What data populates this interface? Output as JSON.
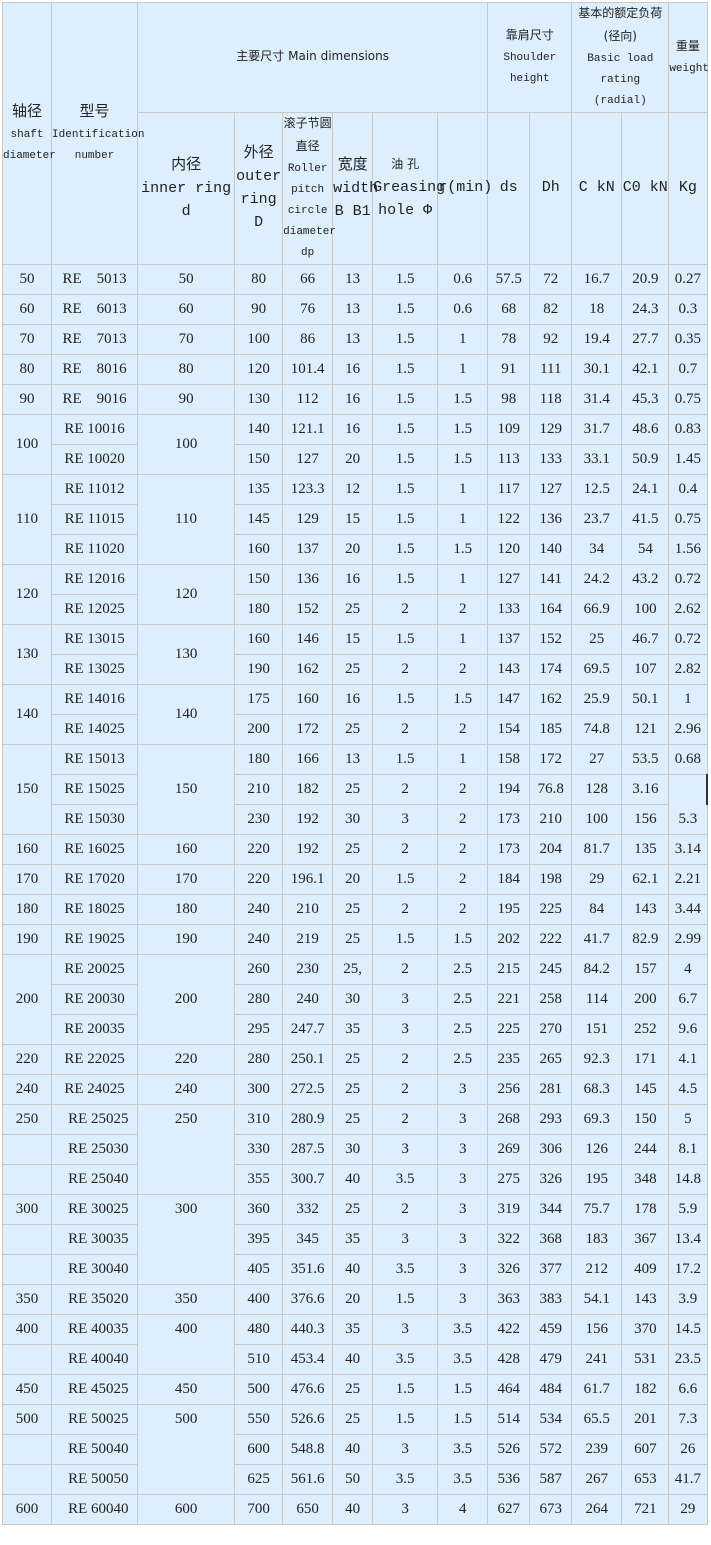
{
  "header": {
    "shaft": {
      "zh": "轴径",
      "en": "shaft diameter"
    },
    "id": {
      "zh": "型号",
      "en": "Identification number"
    },
    "main": "主要尺寸 Main dimensions",
    "shoulder": {
      "zh": "靠肩尺寸",
      "en": "Shoulder height"
    },
    "load": {
      "zh": "基本的额定负荷(径向)",
      "en": "Basic load rating (radial)"
    },
    "weight": {
      "zh": "重量",
      "en": "weight"
    },
    "inner": {
      "zh": "内径",
      "en": "inner ring d"
    },
    "outer": {
      "zh": "外径",
      "en": "outer ring D"
    },
    "pitch": {
      "zh": "滚子节圆直径",
      "en": "Roller pitch circle diameter dp"
    },
    "width": {
      "zh": "宽度",
      "en": "width B B1"
    },
    "grease": {
      "zh": "油 孔",
      "en": "Greasing hole Φ"
    },
    "r": "r(min)",
    "ds": "ds",
    "dh": "Dh",
    "c": "C kN",
    "c0": "C0 kN",
    "kg": "Kg"
  },
  "groups": [
    {
      "shaft": "50",
      "inner": "50",
      "rows": [
        {
          "id": "RE    5013",
          "v": [
            "80",
            "66",
            "13",
            "1.5",
            "0.6",
            "57.5",
            "72",
            "16.7",
            "20.9",
            "0.27"
          ]
        }
      ]
    },
    {
      "shaft": "60",
      "inner": "60",
      "rows": [
        {
          "id": "RE    6013",
          "v": [
            "90",
            "76",
            "13",
            "1.5",
            "0.6",
            "68",
            "82",
            "18",
            "24.3",
            "0.3"
          ]
        }
      ]
    },
    {
      "shaft": "70",
      "inner": "70",
      "rows": [
        {
          "id": "RE    7013",
          "v": [
            "100",
            "86",
            "13",
            "1.5",
            "1",
            "78",
            "92",
            "19.4",
            "27.7",
            "0.35"
          ]
        }
      ]
    },
    {
      "shaft": "80",
      "inner": "80",
      "rows": [
        {
          "id": "RE    8016",
          "v": [
            "120",
            "101.4",
            "16",
            "1.5",
            "1",
            "91",
            "111",
            "30.1",
            "42.1",
            "0.7"
          ]
        }
      ]
    },
    {
      "shaft": "90",
      "inner": "90",
      "rows": [
        {
          "id": "RE    9016",
          "v": [
            "130",
            "112",
            "16",
            "1.5",
            "1.5",
            "98",
            "118",
            "31.4",
            "45.3",
            "0.75"
          ]
        }
      ]
    },
    {
      "shaft": "100",
      "inner": "100",
      "rows": [
        {
          "id": "RE 10016",
          "v": [
            "140",
            "121.1",
            "16",
            "1.5",
            "1.5",
            "109",
            "129",
            "31.7",
            "48.6",
            "0.83"
          ]
        },
        {
          "id": "RE 10020",
          "v": [
            "150",
            "127",
            "20",
            "1.5",
            "1.5",
            "113",
            "133",
            "33.1",
            "50.9",
            "1.45"
          ]
        }
      ]
    },
    {
      "shaft": "110",
      "inner": "110",
      "rows": [
        {
          "id": "RE 11012",
          "v": [
            "135",
            "123.3",
            "12",
            "1.5",
            "1",
            "117",
            "127",
            "12.5",
            "24.1",
            "0.4"
          ]
        },
        {
          "id": "RE 11015",
          "v": [
            "145",
            "129",
            "15",
            "1.5",
            "1",
            "122",
            "136",
            "23.7",
            "41.5",
            "0.75"
          ]
        },
        {
          "id": "RE 11020",
          "v": [
            "160",
            "137",
            "20",
            "1.5",
            "1.5",
            "120",
            "140",
            "34",
            "54",
            "1.56"
          ]
        }
      ]
    },
    {
      "shaft": "120",
      "inner": "120",
      "rows": [
        {
          "id": "RE 12016",
          "v": [
            "150",
            "136",
            "16",
            "1.5",
            "1",
            "127",
            "141",
            "24.2",
            "43.2",
            "0.72"
          ]
        },
        {
          "id": "RE 12025",
          "v": [
            "180",
            "152",
            "25",
            "2",
            "2",
            "133",
            "164",
            "66.9",
            "100",
            "2.62"
          ]
        }
      ]
    },
    {
      "shaft": "130",
      "inner": "130",
      "rows": [
        {
          "id": "RE 13015",
          "v": [
            "160",
            "146",
            "15",
            "1.5",
            "1",
            "137",
            "152",
            "25",
            "46.7",
            "0.72"
          ]
        },
        {
          "id": "RE 13025",
          "v": [
            "190",
            "162",
            "25",
            "2",
            "2",
            "143",
            "174",
            "69.5",
            "107",
            "2.82"
          ]
        }
      ]
    },
    {
      "shaft": "140",
      "inner": "140",
      "rows": [
        {
          "id": "RE 14016",
          "v": [
            "175",
            "160",
            "16",
            "1.5",
            "1.5",
            "147",
            "162",
            "25.9",
            "50.1",
            "1"
          ]
        },
        {
          "id": "RE 14025",
          "v": [
            "200",
            "172",
            "25",
            "2",
            "2",
            "154",
            "185",
            "74.8",
            "121",
            "2.96"
          ]
        }
      ]
    },
    {
      "shaft": "150",
      "inner": "150",
      "rows": [
        {
          "id": "RE 15013",
          "v": [
            "180",
            "166",
            "13",
            "1.5",
            "1",
            "158",
            "172",
            "27",
            "53.5",
            "0.68"
          ]
        },
        {
          "id": "RE 15025",
          "v": [
            "210",
            "182",
            "25",
            "2",
            "2",
            "194",
            "76.8",
            "128",
            "3.16",
            ""
          ]
        },
        {
          "id": "RE 15030",
          "v": [
            "230",
            "192",
            "30",
            "3",
            "2",
            "173",
            "210",
            "100",
            "156",
            "5.3"
          ]
        }
      ]
    },
    {
      "shaft": "160",
      "inner": "160",
      "rows": [
        {
          "id": "RE 16025",
          "v": [
            "220",
            "192",
            "25",
            "2",
            "2",
            "173",
            "204",
            "81.7",
            "135",
            "3.14"
          ]
        }
      ]
    },
    {
      "shaft": "170",
      "inner": "170",
      "rows": [
        {
          "id": "RE 17020",
          "v": [
            "220",
            "196.1",
            "20",
            "1.5",
            "2",
            "184",
            "198",
            "29",
            "62.1",
            "2.21"
          ]
        }
      ]
    },
    {
      "shaft": "180",
      "inner": "180",
      "rows": [
        {
          "id": "RE 18025",
          "v": [
            "240",
            "210",
            "25",
            "2",
            "2",
            "195",
            "225",
            "84",
            "143",
            "3.44"
          ]
        }
      ]
    },
    {
      "shaft": "190",
      "inner": "190",
      "rows": [
        {
          "id": "RE 19025",
          "v": [
            "240",
            "219",
            "25",
            "1.5",
            "1.5",
            "202",
            "222",
            "41.7",
            "82.9",
            "2.99"
          ]
        }
      ]
    },
    {
      "shaft": "200",
      "inner": "200",
      "rows": [
        {
          "id": "RE 20025",
          "v": [
            "260",
            "230",
            "25,",
            "2",
            "2.5",
            "215",
            "245",
            "84.2",
            "157",
            "4"
          ]
        },
        {
          "id": "RE 20030",
          "v": [
            "280",
            "240",
            "30",
            "3",
            "2.5",
            "221",
            "258",
            "114",
            "200",
            "6.7"
          ]
        },
        {
          "id": "RE 20035",
          "v": [
            "295",
            "247.7",
            "35",
            "3",
            "2.5",
            "225",
            "270",
            "151",
            "252",
            "9.6"
          ]
        }
      ]
    },
    {
      "shaft": "220",
      "inner": "220",
      "rows": [
        {
          "id": "RE 22025",
          "v": [
            "280",
            "250.1",
            "25",
            "2",
            "2.5",
            "235",
            "265",
            "92.3",
            "171",
            "4.1"
          ]
        }
      ]
    },
    {
      "shaft": "240",
      "inner": "240",
      "rows": [
        {
          "id": "RE 24025",
          "v": [
            "300",
            "272.5",
            "25",
            "2",
            "3",
            "256",
            "281",
            "68.3",
            "145",
            "4.5"
          ]
        }
      ]
    },
    {
      "shaft": "250",
      "inner": "250",
      "split": true,
      "rows": [
        {
          "id": "  RE 25025",
          "v": [
            "310",
            "280.9",
            "25",
            "2",
            "3",
            "268",
            "293",
            "69.3",
            "150",
            "5"
          ]
        },
        {
          "id": "  RE 25030",
          "v": [
            "330",
            "287.5",
            "30",
            "3",
            "3",
            "269",
            "306",
            "126",
            "244",
            "8.1"
          ]
        },
        {
          "id": "  RE 25040",
          "v": [
            "355",
            "300.7",
            "40",
            "3.5",
            "3",
            "275",
            "326",
            "195",
            "348",
            "14.8"
          ]
        }
      ]
    },
    {
      "shaft": "300",
      "inner": "300",
      "split": true,
      "rows": [
        {
          "id": "  RE 30025",
          "v": [
            "360",
            "332",
            "25",
            "2",
            "3",
            "319",
            "344",
            "75.7",
            "178",
            "5.9"
          ]
        },
        {
          "id": "  RE 30035",
          "v": [
            "395",
            "345",
            "35",
            "3",
            "3",
            "322",
            "368",
            "183",
            "367",
            "13.4"
          ]
        },
        {
          "id": "  RE 30040",
          "v": [
            "405",
            "351.6",
            "40",
            "3.5",
            "3",
            "326",
            "377",
            "212",
            "409",
            "17.2"
          ]
        }
      ]
    },
    {
      "shaft": "350",
      "inner": "350",
      "split": true,
      "rows": [
        {
          "id": "  RE 35020",
          "v": [
            "400",
            "376.6",
            "20",
            "1.5",
            "3",
            "363",
            "383",
            "54.1",
            "143",
            "3.9"
          ]
        }
      ]
    },
    {
      "shaft": "400",
      "inner": "400",
      "split": true,
      "rows": [
        {
          "id": "  RE 40035",
          "v": [
            "480",
            "440.3",
            "35",
            "3",
            "3.5",
            "422",
            "459",
            "156",
            "370",
            "14.5"
          ]
        },
        {
          "id": "  RE 40040",
          "v": [
            "510",
            "453.4",
            "40",
            "3.5",
            "3.5",
            "428",
            "479",
            "241",
            "531",
            "23.5"
          ]
        }
      ]
    },
    {
      "shaft": "450",
      "inner": "450",
      "split": true,
      "rows": [
        {
          "id": "  RE 45025",
          "v": [
            "500",
            "476.6",
            "25",
            "1.5",
            "1.5",
            "464",
            "484",
            "61.7",
            "182",
            "6.6"
          ]
        }
      ]
    },
    {
      "shaft": "500",
      "inner": "500",
      "split": true,
      "rows": [
        {
          "id": "  RE 50025",
          "v": [
            "550",
            "526.6",
            "25",
            "1.5",
            "1.5",
            "514",
            "534",
            "65.5",
            "201",
            "7.3"
          ]
        },
        {
          "id": "  RE 50040",
          "v": [
            "600",
            "548.8",
            "40",
            "3",
            "3.5",
            "526",
            "572",
            "239",
            "607",
            "26"
          ]
        },
        {
          "id": "  RE 50050",
          "v": [
            "625",
            "561.6",
            "50",
            "3.5",
            "3.5",
            "536",
            "587",
            "267",
            "653",
            "41.7"
          ]
        }
      ]
    },
    {
      "shaft": "600",
      "inner": "600",
      "split": true,
      "rows": [
        {
          "id": "  RE 60040",
          "v": [
            "700",
            "650",
            "40",
            "3",
            "4",
            "627",
            "673",
            "264",
            "721",
            "29"
          ]
        }
      ]
    }
  ]
}
